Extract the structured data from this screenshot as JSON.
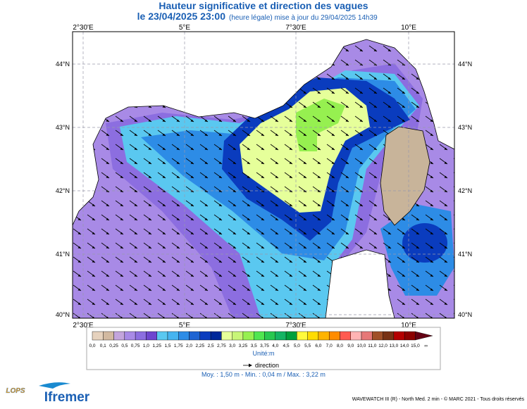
{
  "header": {
    "title": "Hauteur significative et direction des vagues",
    "date": "le 23/04/2025 23:00",
    "subtitle": "(heure légale) mise à jour du 29/04/2025 14h39"
  },
  "map": {
    "lon_labels": [
      "2°30'E",
      "5°E",
      "7°30'E",
      "10°E"
    ],
    "lat_labels": [
      "44°N",
      "43°N",
      "42°N",
      "41°N",
      "40°N"
    ]
  },
  "legend": {
    "labels": [
      "0,0",
      "0,1",
      "0,25",
      "0,5",
      "0,75",
      "1,0",
      "1,25",
      "1,5",
      "1,75",
      "2,0",
      "2,25",
      "2,5",
      "2,75",
      "3,0",
      "3,25",
      "3,5",
      "3,75",
      "4,0",
      "4,5",
      "5,0",
      "5,5",
      "6,0",
      "7,0",
      "8,0",
      "9,0",
      "10,0",
      "11,0",
      "12,0",
      "13,0",
      "14,0",
      "15,0",
      "∞"
    ],
    "colors": [
      "#e6d2be",
      "#d2b9a0",
      "#c3a5dc",
      "#a88ae6",
      "#8c6ee0",
      "#6e46cf",
      "#5ac8f0",
      "#46b4f0",
      "#2d8ce6",
      "#1e64d2",
      "#0a3cbe",
      "#00289a",
      "#e6ff9a",
      "#c8f578",
      "#96f050",
      "#50e650",
      "#28c850",
      "#14b464",
      "#00a03c",
      "#fffa3c",
      "#ffdc00",
      "#ffb400",
      "#ff8c00",
      "#ff5a50",
      "#ffb4b4",
      "#e67878",
      "#a05028",
      "#783214",
      "#b40000",
      "#8c0000",
      "#640014"
    ],
    "unit": "Unité:m",
    "direction": "direction",
    "stats": "Moy. : 1,50 m  -  Min. : 0,04 m / Max. : 3,22 m"
  },
  "footer": {
    "logo_lops": "LOPS",
    "logo_ifremer": "Ifremer",
    "credit": "WAVEWATCH III (R) - North Med. 2 min - © MARC 2021 - Tous droits réservés"
  }
}
